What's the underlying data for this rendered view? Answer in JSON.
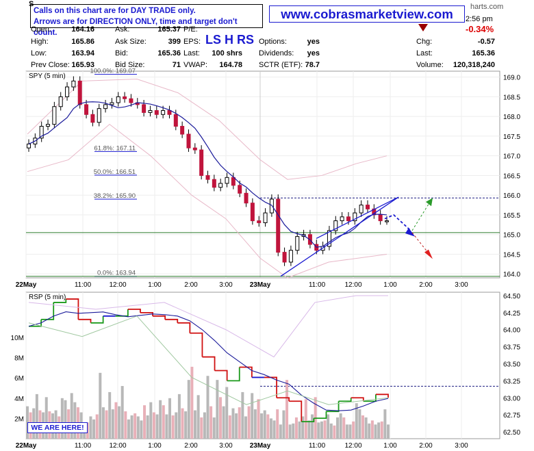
{
  "header": {
    "note_line1": "Calls on this chart are for DAY TRADE only.",
    "note_line2": "Arrows are for DIRECTION ONLY, time and target don't count.",
    "site": "www.cobrasmarketview.com",
    "ls_hrs": "LS H RS",
    "time_fragment": "2:56 pm",
    "site_fragment": "harts.com",
    "change_pct": "-0.34%",
    "fields": [
      {
        "label": "Open:",
        "value": "164.16"
      },
      {
        "label": "Ask:",
        "value": "165.37"
      },
      {
        "label": "P/E:",
        "value": ""
      },
      {
        "label": "High:",
        "value": "165.86"
      },
      {
        "label": "Ask Size:",
        "value": "399"
      },
      {
        "label": "EPS:",
        "value": ""
      },
      {
        "label": "Options:",
        "value": "yes"
      },
      {
        "label": "Chg:",
        "value": "-0.57"
      },
      {
        "label": "Low:",
        "value": "163.94"
      },
      {
        "label": "Bid:",
        "value": "165.36"
      },
      {
        "label": "Last:",
        "value": "100 shrs"
      },
      {
        "label": "Dividends:",
        "value": "yes"
      },
      {
        "label": "Last:",
        "value": "165.36"
      },
      {
        "label": "Prev Close:",
        "value": "165.93"
      },
      {
        "label": "Bid Size:",
        "value": "71"
      },
      {
        "label": "VWAP:",
        "value": "164.78"
      },
      {
        "label": "SCTR (ETF):",
        "value": "78.7"
      },
      {
        "label": "Volume:",
        "value": "120,318,240"
      }
    ],
    "colors": {
      "accent": "#1a1ad0",
      "down": "#d00000",
      "up": "#000000"
    }
  },
  "chart_data": [
    {
      "type": "line",
      "panel": "price",
      "title": "SPY (5 min)",
      "ylim": [
        163.9,
        169.15
      ],
      "y_ticks": [
        "169.0",
        "168.5",
        "168.0",
        "167.5",
        "167.0",
        "166.5",
        "166.0",
        "165.5",
        "165.0",
        "164.5",
        "164.0"
      ],
      "x_ticks": [
        "22May",
        "11:00",
        "12:00",
        "1:00",
        "2:00",
        "3:00",
        "23May",
        "11:00",
        "12:00",
        "1:00",
        "2:00",
        "3:00"
      ],
      "fib_levels": [
        {
          "label": "100.0%: 169.07",
          "value": 169.07
        },
        {
          "label": "61.8%: 167.11",
          "value": 167.11
        },
        {
          "label": "50.0%: 166.51",
          "value": 166.51
        },
        {
          "label": "38.2%: 165.90",
          "value": 165.9
        },
        {
          "label": "0.0%: 163.94",
          "value": 163.94
        }
      ],
      "horizontal_lines": [
        {
          "value": 165.93,
          "style": "dashed-navy"
        },
        {
          "value": 165.05,
          "style": "solid-green"
        },
        {
          "value": 163.94,
          "style": "solid-green"
        }
      ],
      "series": [
        {
          "name": "Close",
          "values": [
            167.3,
            167.45,
            167.75,
            167.8,
            168.25,
            168.5,
            168.75,
            168.9,
            168.3,
            168.05,
            167.85,
            168.2,
            168.3,
            168.35,
            168.5,
            168.45,
            168.35,
            168.3,
            168.1,
            168.15,
            168.05,
            168.15,
            168.05,
            167.75,
            167.55,
            167.2,
            167.15,
            166.5,
            166.4,
            166.2,
            166.3,
            166.45,
            166.25,
            166.05,
            165.8,
            165.35,
            165.3,
            165.55,
            165.9,
            164.55,
            164.3,
            164.6,
            164.95,
            165.0,
            164.75,
            164.6,
            164.7,
            165.1,
            165.35,
            165.45,
            165.35,
            165.55,
            165.75,
            165.65,
            165.5,
            165.35,
            165.35
          ]
        },
        {
          "name": "Projection",
          "values": [
            165.4,
            165.5,
            165.1,
            165.8,
            164.5
          ]
        }
      ]
    },
    {
      "type": "bar",
      "panel": "volume",
      "title": "RSP (5 min)",
      "ylim": [
        62.4,
        64.55
      ],
      "y_ticks": [
        "64.50",
        "64.25",
        "64.00",
        "63.75",
        "63.50",
        "63.25",
        "63.00",
        "62.75",
        "62.50"
      ],
      "volume_ticks": [
        "10M",
        "8M",
        "6M",
        "4M",
        "2M"
      ],
      "horizontal_lines": [
        {
          "value": 63.17,
          "style": "dashed-navy"
        }
      ],
      "series": [
        {
          "name": "Close",
          "values": [
            64.05,
            64.15,
            64.4,
            64.45,
            64.15,
            64.1,
            64.2,
            64.2,
            64.3,
            64.25,
            64.2,
            64.15,
            64.1,
            63.95,
            63.6,
            63.4,
            63.25,
            63.45,
            63.3,
            63.3,
            63.0,
            62.95,
            62.65,
            62.7,
            62.8,
            62.95,
            63.0,
            62.95,
            63.05,
            63.0
          ]
        },
        {
          "name": "Volume (M)",
          "values": [
            3.2,
            2.6,
            3.0,
            4.4,
            2.8,
            2.6,
            4.1,
            2.7,
            2.5,
            2.8,
            2.2,
            4.0,
            3.8,
            2.9,
            4.5,
            3.6,
            3.1,
            2.6,
            1.4,
            1.6,
            2.2,
            1.9,
            2.4,
            6.5,
            3.1,
            2.8,
            4.6,
            2.9,
            3.6,
            3.2,
            5.2,
            2.7,
            1.9,
            2.3,
            2.5,
            2.2,
            1.8,
            3.3,
            2.3,
            3.6,
            2.6,
            2.4,
            3.8,
            3.3,
            2.4,
            4.0,
            2.3,
            2.6,
            4.4,
            3.0,
            2.7,
            5.8,
            7.1,
            2.8,
            4.3,
            2.1,
            2.6,
            6.2,
            3.2,
            2.1,
            5.8,
            4.1,
            3.2,
            5.1,
            2.3,
            3.0,
            2.5,
            3.1,
            4.6,
            2.2,
            3.2,
            4.5,
            2.9,
            3.9,
            2.5,
            2.8,
            2.4,
            2.0,
            1.8,
            2.9,
            1.4,
            2.8,
            5.8,
            1.4,
            1.5,
            2.1,
            1.7,
            2.2,
            3.9,
            1.8,
            2.4,
            4.1,
            1.6,
            1.7,
            1.8,
            2.4,
            1.5,
            1.3,
            2.1,
            2.5,
            2.1,
            1.4,
            1.4,
            1.7,
            3.5,
            2.9,
            2.3,
            2.1,
            1.5,
            1.8,
            1.4,
            1.6,
            1.7,
            2.9,
            1.4
          ]
        }
      ]
    }
  ],
  "footer": {
    "here_label": "WE ARE HERE!"
  }
}
